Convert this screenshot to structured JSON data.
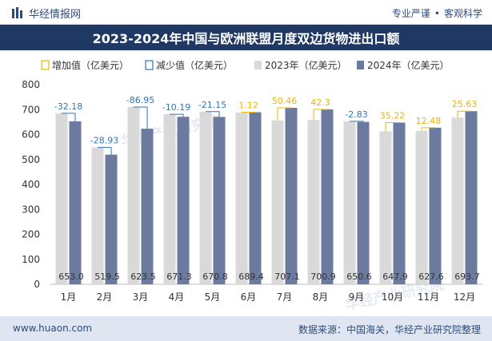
{
  "header": {
    "brand": "华经情报网",
    "tagline_left": "专业严谨",
    "tagline_sep": "•",
    "tagline_right": "客观科学"
  },
  "footer": {
    "website": "www.huaon.com",
    "source": "数据来源：中国海关，华经产业研究院整理"
  },
  "watermark": {
    "text": "华经产业研究院",
    "url": "www.huaon.com"
  },
  "colors": {
    "title_band": "#1f3864",
    "bar_2023": "#d9d9d9",
    "bar_2024": "#6b7a9e",
    "increase": "#f0b400",
    "decrease": "#2e75b6"
  },
  "chart_data": {
    "type": "bar",
    "title": "2023-2024年中国与欧洲联盟月度双边货物进出口额",
    "categories": [
      "1月",
      "2月",
      "3月",
      "4月",
      "5月",
      "6月",
      "7月",
      "8月",
      "9月",
      "10月",
      "11月",
      "12月"
    ],
    "series": [
      {
        "name": "2023年（亿美元）",
        "values": [
          685.2,
          548.4,
          710.4,
          681.4,
          691.9,
          688.3,
          656.6,
          658.6,
          653.4,
          612.7,
          615.1,
          668.1
        ]
      },
      {
        "name": "2024年（亿美元）",
        "values": [
          653.0,
          519.5,
          623.5,
          671.3,
          670.8,
          689.4,
          707.1,
          700.9,
          650.6,
          647.9,
          627.6,
          693.7
        ]
      }
    ],
    "value_labels_2024": [
      "653.0",
      "519.5",
      "623.5",
      "671.3",
      "670.8",
      "689.4",
      "707.1",
      "700.9",
      "650.6",
      "647.9",
      "627.6",
      "693.7"
    ],
    "change_values": [
      -32.18,
      -28.93,
      -86.95,
      -10.19,
      -21.15,
      1.12,
      50.46,
      42.3,
      -2.83,
      35.22,
      12.48,
      25.63
    ],
    "change_labels": [
      "-32.18",
      "-28.93",
      "-86.95",
      "-10.19",
      "-21.15",
      "1.12",
      "50.46",
      "42.3",
      "-2.83",
      "35.22",
      "12.48",
      "25.63"
    ],
    "legend": [
      {
        "label": "增加值（亿美元）",
        "kind": "increase"
      },
      {
        "label": "减少值（亿美元）",
        "kind": "decrease"
      },
      {
        "label": "2023年（亿美元）",
        "kind": "bar2023"
      },
      {
        "label": "2024年（亿美元）",
        "kind": "bar2024"
      }
    ],
    "legend_position": "top",
    "ylim": [
      0,
      800
    ],
    "yticks": [
      0,
      100,
      200,
      300,
      400,
      500,
      600,
      700,
      800
    ],
    "grid": false
  }
}
